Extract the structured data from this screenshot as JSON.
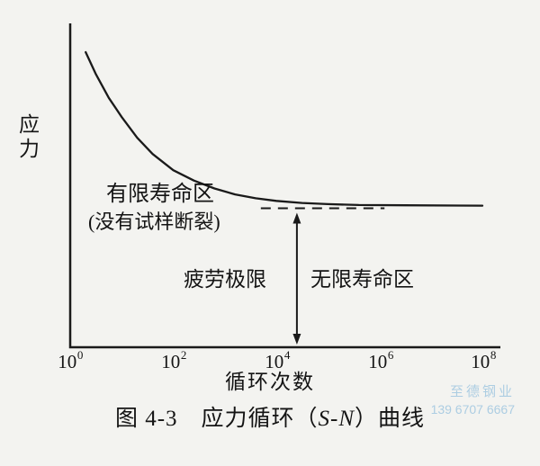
{
  "chart_data": {
    "type": "line",
    "title": "图 4-3 应力循环（S-N）曲线",
    "xlabel": "循环次数",
    "ylabel": "应力",
    "x_scale": "log",
    "x_range_exponents": [
      0,
      8
    ],
    "x_tick_labels": [
      "10⁰",
      "10²",
      "10⁴",
      "10⁶",
      "10⁸"
    ],
    "x_tick_base": "10",
    "x_tick_exponents": [
      "0",
      "2",
      "4",
      "6",
      "8"
    ],
    "y_axis_numeric_labels": "none (qualitative stress axis)",
    "line_color": "#1a1a1a",
    "series": [
      {
        "name": "S-N 曲线",
        "x_exp": [
          0.3,
          0.5,
          0.75,
          1.0,
          1.3,
          1.6,
          2.0,
          2.4,
          2.8,
          3.2,
          3.6,
          4.0,
          4.5,
          5.0,
          5.6,
          6.5,
          8.0
        ],
        "y_rel": [
          1.0,
          0.925,
          0.845,
          0.78,
          0.71,
          0.655,
          0.6,
          0.565,
          0.538,
          0.518,
          0.505,
          0.496,
          0.489,
          0.485,
          0.482,
          0.481,
          0.48
        ]
      }
    ],
    "fatigue_limit_y_rel": 0.471,
    "dashed_line": {
      "from_exp": 3.7,
      "to_exp": 6.1,
      "y_rel": 0.471
    },
    "arrow": {
      "x_exp": 4.4,
      "from": "x-axis",
      "to": "fatigue-limit dashed line",
      "double_headed": true
    }
  },
  "labels": {
    "y_axis": "应力",
    "x_axis": "循环次数",
    "region_finite": "有限寿命区",
    "region_finite_sub": "(没有试样断裂)",
    "fatigue_limit": "疲劳极限",
    "region_infinite": "无限寿命区"
  },
  "caption": {
    "prefix": "图 4-3　应力循环（",
    "sn": "S-N",
    "suffix": "）曲线"
  },
  "watermark": {
    "name": "至德钢业",
    "phone": "139 6707 6667",
    "color": "#a9cbe2"
  }
}
